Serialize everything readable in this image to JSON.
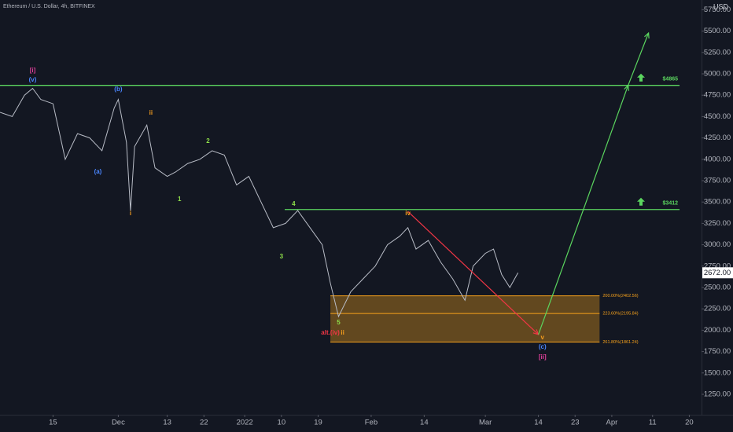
{
  "chart_data": {
    "type": "line",
    "title": "Ethereum / U.S. Dollar, 4h, BITFINEX",
    "unit_label": "USD",
    "x": [
      "2021-11-02",
      "2021-11-05",
      "2021-11-08",
      "2021-11-10",
      "2021-11-12",
      "2021-11-15",
      "2021-11-18",
      "2021-11-21",
      "2021-11-24",
      "2021-11-27",
      "2021-11-30",
      "2021-12-01",
      "2021-12-03",
      "2021-12-04",
      "2021-12-05",
      "2021-12-08",
      "2021-12-10",
      "2021-12-13",
      "2021-12-15",
      "2021-12-18",
      "2021-12-21",
      "2021-12-24",
      "2021-12-27",
      "2021-12-30",
      "2022-01-02",
      "2022-01-05",
      "2022-01-08",
      "2022-01-11",
      "2022-01-14",
      "2022-01-17",
      "2022-01-20",
      "2022-01-22",
      "2022-01-24",
      "2022-01-27",
      "2022-01-30",
      "2022-02-02",
      "2022-02-05",
      "2022-02-08",
      "2022-02-10",
      "2022-02-12",
      "2022-02-15",
      "2022-02-18",
      "2022-02-21",
      "2022-02-24",
      "2022-02-26",
      "2022-03-01",
      "2022-03-03",
      "2022-03-05",
      "2022-03-07",
      "2022-03-09"
    ],
    "series": [
      {
        "color": "#b8bcc6",
        "values": [
          4550,
          4500,
          4750,
          4830,
          4700,
          4650,
          4000,
          4300,
          4250,
          4100,
          4600,
          4700,
          4200,
          3400,
          4150,
          4400,
          3900,
          3800,
          3850,
          3950,
          4000,
          4100,
          4050,
          3700,
          3800,
          3500,
          3200,
          3250,
          3400,
          3200,
          3000,
          2550,
          2160,
          2450,
          2600,
          2750,
          3000,
          3100,
          3200,
          2950,
          3050,
          2800,
          2600,
          2350,
          2750,
          2900,
          2950,
          2650,
          2500,
          2672
        ]
      }
    ],
    "xlim": [
      "2021-11-02",
      "2022-04-23"
    ],
    "xticks": [
      {
        "value": "2021-11-15",
        "label": "15"
      },
      {
        "value": "2021-12-01",
        "label": "Dec"
      },
      {
        "value": "2021-12-13",
        "label": "13"
      },
      {
        "value": "2021-12-22",
        "label": "22"
      },
      {
        "value": "2022-01-01",
        "label": "2022"
      },
      {
        "value": "2022-01-10",
        "label": "10"
      },
      {
        "value": "2022-01-19",
        "label": "19"
      },
      {
        "value": "2022-02-01",
        "label": "Feb"
      },
      {
        "value": "2022-02-14",
        "label": "14"
      },
      {
        "value": "2022-03-01",
        "label": "Mar"
      },
      {
        "value": "2022-03-14",
        "label": "14"
      },
      {
        "value": "2022-03-23",
        "label": "23"
      },
      {
        "value": "2022-04-01",
        "label": "Apr"
      },
      {
        "value": "2022-04-11",
        "label": "11"
      },
      {
        "value": "2022-04-20",
        "label": "20"
      }
    ],
    "ylim": [
      1011,
      5864
    ],
    "yticks": [
      {
        "value": 1250,
        "label": "1250.00"
      },
      {
        "value": 1500,
        "label": "1500.00"
      },
      {
        "value": 1750,
        "label": "1750.00"
      },
      {
        "value": 2000,
        "label": "2000.00"
      },
      {
        "value": 2250,
        "label": "2250.00"
      },
      {
        "value": 2500,
        "label": "2500.00"
      },
      {
        "value": 2750,
        "label": "2750.00"
      },
      {
        "value": 3000,
        "label": "3000.00"
      },
      {
        "value": 3250,
        "label": "3250.00"
      },
      {
        "value": 3500,
        "label": "3500.00"
      },
      {
        "value": 3750,
        "label": "3750.00"
      },
      {
        "value": 4000,
        "label": "4000.00"
      },
      {
        "value": 4250,
        "label": "4250.00"
      },
      {
        "value": 4500,
        "label": "4500.00"
      },
      {
        "value": 4750,
        "label": "4750.00"
      },
      {
        "value": 5000,
        "label": "5000.00"
      },
      {
        "value": 5250,
        "label": "5250.00"
      },
      {
        "value": 5500,
        "label": "5500.00"
      },
      {
        "value": 5750,
        "label": "5750.00"
      }
    ],
    "grid": false,
    "last_price": {
      "value": 2672,
      "label": "2672.00"
    },
    "levels": [
      {
        "value": 4865,
        "label": "$4865",
        "color": "#5bd65f"
      },
      {
        "value": 3412,
        "label": "$3412",
        "color": "#5bd65f"
      }
    ],
    "fib_zone": {
      "x": [
        "2022-01-22",
        "2022-03-29"
      ],
      "color": "#f7a21b"
    },
    "fib_levels": [
      {
        "value": 2402.56,
        "label": "200.00%(2402.56)"
      },
      {
        "value": 2195.84,
        "label": "223.60%(2195.84)"
      },
      {
        "value": 1861.24,
        "label": "261.80%(1861.24)"
      }
    ],
    "annotations": [
      {
        "text": "[i]",
        "x": "2021-11-10",
        "y": 5037,
        "color": "#e0409a"
      },
      {
        "text": "(v)",
        "x": "2021-11-10",
        "y": 4926,
        "color": "#4a86ff"
      },
      {
        "text": "(b)",
        "x": "2021-12-01",
        "y": 4816,
        "color": "#4a86ff"
      },
      {
        "text": "ii",
        "x": "2021-12-09",
        "y": 4540,
        "color": "#f59d1d"
      },
      {
        "text": "(a)",
        "x": "2021-11-26",
        "y": 3851,
        "color": "#4a86ff"
      },
      {
        "text": "i",
        "x": "2021-12-04",
        "y": 3364,
        "color": "#f59d1d"
      },
      {
        "text": "1",
        "x": "2021-12-16",
        "y": 3529,
        "color": "#8fe04a"
      },
      {
        "text": "2",
        "x": "2021-12-23",
        "y": 4210,
        "color": "#8fe04a"
      },
      {
        "text": "3",
        "x": "2022-01-10",
        "y": 2858,
        "color": "#8fe04a"
      },
      {
        "text": "4",
        "x": "2022-01-13",
        "y": 3474,
        "color": "#8fe04a"
      },
      {
        "text": "5",
        "x": "2022-01-24",
        "y": 2086,
        "color": "#8fe04a"
      },
      {
        "text": "alt.(iv)",
        "x": "2022-01-22",
        "y": 1967,
        "color": "#f23645"
      },
      {
        "text": "ii",
        "x": "2022-01-25",
        "y": 1967,
        "color": "#f59d1d"
      },
      {
        "text": "iv",
        "x": "2022-02-10",
        "y": 3364,
        "color": "#f59d1d"
      },
      {
        "text": "v",
        "x": "2022-03-15",
        "y": 1912,
        "color": "#f59d1d"
      },
      {
        "text": "(c)",
        "x": "2022-03-15",
        "y": 1801,
        "color": "#4a86ff"
      },
      {
        "text": "[ii]",
        "x": "2022-03-15",
        "y": 1682,
        "color": "#e0409a"
      }
    ],
    "arrows": [
      {
        "from": [
          "2022-02-10",
          3390
        ],
        "to": [
          "2022-03-14",
          1949
        ],
        "color": "#f23645"
      },
      {
        "from": [
          "2022-03-14",
          1949
        ],
        "to": [
          "2022-04-05",
          4865
        ],
        "color": "#5bd65f"
      },
      {
        "from": [
          "2022-04-05",
          4865
        ],
        "to": [
          "2022-04-10",
          5478
        ],
        "color": "#5bd65f"
      }
    ]
  }
}
